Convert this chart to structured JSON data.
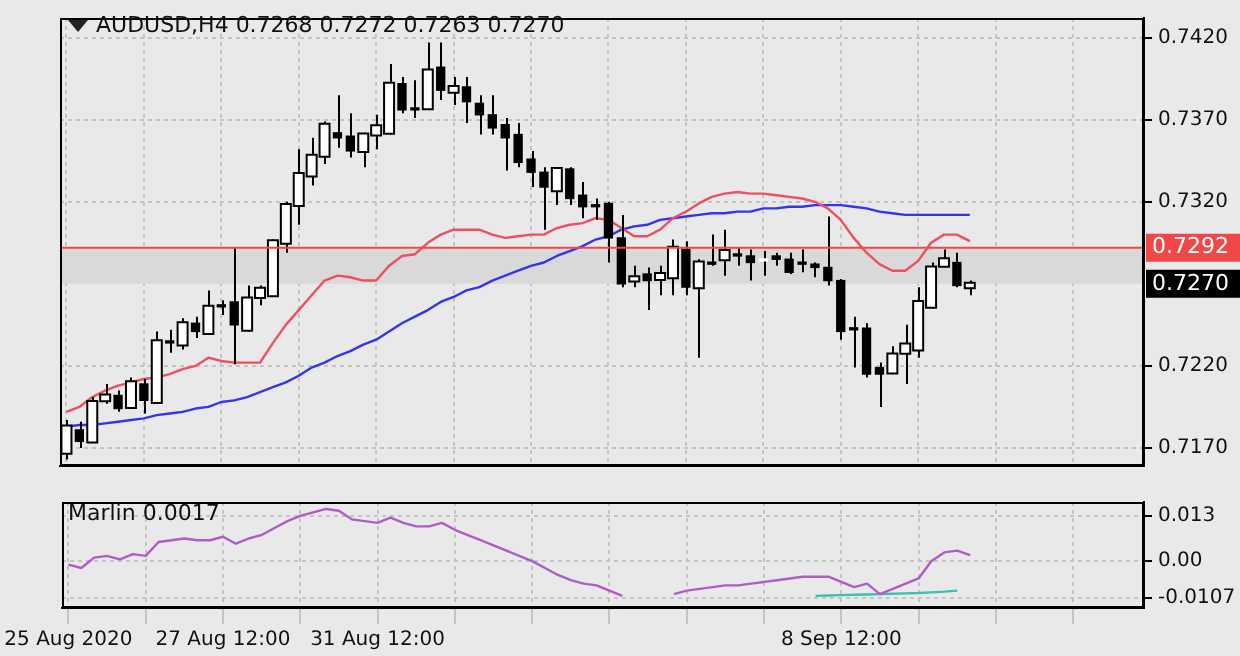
{
  "chart_data": [
    {
      "type": "candlestick",
      "title": "AUDUSD,H4  0.7268 0.7272 0.7263 0.7270",
      "categories": [
        null,
        null,
        null,
        null,
        null,
        null,
        null,
        null,
        null,
        null,
        null,
        null,
        null,
        null,
        null,
        null,
        null,
        null,
        null,
        null,
        null,
        null,
        null,
        null,
        null,
        null,
        null,
        null,
        null,
        null,
        null,
        null,
        null,
        null,
        null,
        null,
        null,
        null,
        null,
        null,
        null,
        null,
        null,
        null,
        null,
        null,
        null,
        null,
        null,
        null,
        null,
        null,
        null,
        null,
        null,
        null,
        null,
        null,
        null,
        null,
        null,
        null,
        null,
        null,
        null,
        null,
        null,
        null,
        null,
        null,
        null,
        null,
        null,
        null,
        null,
        null,
        null,
        null,
        null,
        null,
        null,
        null,
        null,
        null
      ],
      "ohlc": [
        [
          0.7167,
          0.7187,
          0.7163,
          0.7183
        ],
        [
          0.7181,
          0.7186,
          0.717,
          0.7174
        ],
        [
          0.7174,
          0.7201,
          0.7173,
          0.7198
        ],
        [
          0.7199,
          0.7209,
          0.7197,
          0.7202
        ],
        [
          0.7202,
          0.7205,
          0.7192,
          0.7194
        ],
        [
          0.7195,
          0.7213,
          0.7194,
          0.721
        ],
        [
          0.7209,
          0.7212,
          0.7191,
          0.7199
        ],
        [
          0.7198,
          0.7241,
          0.7197,
          0.7235
        ],
        [
          0.7235,
          0.7242,
          0.7228,
          0.7234
        ],
        [
          0.7233,
          0.7249,
          0.723,
          0.7246
        ],
        [
          0.7246,
          0.725,
          0.7237,
          0.7241
        ],
        [
          0.724,
          0.7266,
          0.7239,
          0.7256
        ],
        [
          0.7257,
          0.726,
          0.7251,
          0.7256
        ],
        [
          0.7259,
          0.7292,
          0.7221,
          0.7245
        ],
        [
          0.7242,
          0.7269,
          0.7241,
          0.7261
        ],
        [
          0.7262,
          0.7269,
          0.7257,
          0.7267
        ],
        [
          0.7263,
          0.7297,
          0.7262,
          0.7296
        ],
        [
          0.7295,
          0.732,
          0.7289,
          0.7318
        ],
        [
          0.7318,
          0.7352,
          0.7306,
          0.7337
        ],
        [
          0.7336,
          0.7359,
          0.733,
          0.7348
        ],
        [
          0.7348,
          0.7369,
          0.7343,
          0.7367
        ],
        [
          0.7362,
          0.7385,
          0.7353,
          0.7359
        ],
        [
          0.736,
          0.7374,
          0.7347,
          0.7351
        ],
        [
          0.7351,
          0.7362,
          0.7341,
          0.7361
        ],
        [
          0.7361,
          0.7373,
          0.7352,
          0.7366
        ],
        [
          0.7362,
          0.7404,
          0.7361,
          0.7392
        ],
        [
          0.7392,
          0.7396,
          0.7374,
          0.7376
        ],
        [
          0.7377,
          0.7394,
          0.7371,
          0.7376
        ],
        [
          0.7377,
          0.7417,
          0.7376,
          0.74
        ],
        [
          0.7402,
          0.7417,
          0.7382,
          0.7388
        ],
        [
          0.7387,
          0.7396,
          0.7379,
          0.739
        ],
        [
          0.739,
          0.7396,
          0.7368,
          0.7381
        ],
        [
          0.738,
          0.7385,
          0.7361,
          0.7373
        ],
        [
          0.7373,
          0.7385,
          0.7361,
          0.7365
        ],
        [
          0.7367,
          0.7371,
          0.7339,
          0.7359
        ],
        [
          0.7361,
          0.7368,
          0.7341,
          0.7344
        ],
        [
          0.7346,
          0.7351,
          0.7329,
          0.7338
        ],
        [
          0.7338,
          0.7341,
          0.7303,
          0.7329
        ],
        [
          0.7327,
          0.7341,
          0.7318,
          0.734
        ],
        [
          0.734,
          0.7341,
          0.7318,
          0.7322
        ],
        [
          0.7324,
          0.7332,
          0.731,
          0.7317
        ],
        [
          0.7318,
          0.7322,
          0.7309,
          0.7317
        ],
        [
          0.7319,
          0.732,
          0.7283,
          0.7298
        ],
        [
          0.7298,
          0.7312,
          0.7268,
          0.727
        ],
        [
          0.7272,
          0.7281,
          0.7268,
          0.7274
        ],
        [
          0.7276,
          0.728,
          0.7254,
          0.7272
        ],
        [
          0.7273,
          0.7281,
          0.7263,
          0.7276
        ],
        [
          0.7274,
          0.7297,
          0.7263,
          0.7292
        ],
        [
          0.7291,
          0.7296,
          0.7263,
          0.7268
        ],
        [
          0.7268,
          0.7285,
          0.7225,
          0.7283
        ],
        [
          0.7283,
          0.73,
          0.7281,
          0.7282
        ],
        [
          0.7285,
          0.7303,
          0.7275,
          0.729
        ],
        [
          0.7288,
          0.7292,
          0.7281,
          0.7287
        ],
        [
          0.7287,
          0.7291,
          0.7272,
          0.7283
        ],
        [
          0.7284,
          0.729,
          0.7275,
          0.7284
        ],
        [
          0.7287,
          0.7289,
          0.7281,
          0.7285
        ],
        [
          0.7285,
          0.7289,
          0.7276,
          0.7277
        ],
        [
          0.7283,
          0.7291,
          0.7277,
          0.7282
        ],
        [
          0.7282,
          0.7283,
          0.7274,
          0.728
        ],
        [
          0.728,
          0.7311,
          0.7269,
          0.7272
        ],
        [
          0.7272,
          0.7273,
          0.7236,
          0.7241
        ],
        [
          0.7243,
          0.725,
          0.7219,
          0.7242
        ],
        [
          0.7243,
          0.7246,
          0.7213,
          0.7215
        ],
        [
          0.7219,
          0.7222,
          0.7195,
          0.7215
        ],
        [
          0.7216,
          0.7232,
          0.7215,
          0.7227
        ],
        [
          0.7228,
          0.7245,
          0.7209,
          0.7233
        ],
        [
          0.723,
          0.7268,
          0.7225,
          0.7259
        ],
        [
          0.7256,
          0.7283,
          0.7255,
          0.728
        ],
        [
          0.7281,
          0.7291,
          0.728,
          0.7285
        ],
        [
          0.7283,
          0.7289,
          0.7268,
          0.7269
        ],
        [
          0.7268,
          0.7272,
          0.7263,
          0.727
        ],
        null,
        null,
        null,
        null,
        null,
        null,
        null,
        null,
        null,
        null,
        null,
        null,
        null
      ],
      "series": [
        {
          "type": "line",
          "color": "#ee4f60",
          "values": [
            0.7192,
            0.7195,
            0.7201,
            0.7205,
            0.7208,
            0.721,
            0.7212,
            0.7213,
            0.7215,
            0.7218,
            0.722,
            0.7225,
            0.7223,
            0.7222,
            0.7222,
            0.7222,
            0.7234,
            0.7245,
            0.7254,
            0.7263,
            0.7272,
            0.7275,
            0.7274,
            0.7272,
            0.7272,
            0.7281,
            0.7287,
            0.7288,
            0.7295,
            0.73,
            0.7303,
            0.7303,
            0.7303,
            0.73,
            0.7298,
            0.7299,
            0.73,
            0.73,
            0.7304,
            0.7306,
            0.7307,
            0.731,
            0.7309,
            0.7304,
            0.7299,
            0.7299,
            0.7303,
            0.731,
            0.7314,
            0.7319,
            0.7323,
            0.7325,
            0.7326,
            0.7325,
            0.7325,
            0.7324,
            0.7323,
            0.7322,
            0.732,
            0.7316,
            0.7309,
            0.7298,
            0.7289,
            0.7282,
            0.7278,
            0.7278,
            0.7284,
            0.7295,
            0.73,
            0.73,
            0.7296,
            null,
            null,
            null,
            null,
            null,
            null,
            null,
            null,
            null,
            null,
            null,
            null,
            null
          ]
        },
        {
          "type": "line",
          "color": "#3434f0",
          "values": [
            0.7183,
            0.7184,
            0.7184,
            0.7185,
            0.7186,
            0.7187,
            0.7188,
            0.719,
            0.7191,
            0.7192,
            0.7194,
            0.7195,
            0.7198,
            0.7199,
            0.7201,
            0.7204,
            0.7207,
            0.721,
            0.7214,
            0.7219,
            0.7222,
            0.7226,
            0.7229,
            0.7233,
            0.7236,
            0.7241,
            0.7246,
            0.725,
            0.7254,
            0.7259,
            0.7262,
            0.7266,
            0.7268,
            0.7272,
            0.7275,
            0.7278,
            0.7281,
            0.7283,
            0.7287,
            0.729,
            0.7293,
            0.7297,
            0.7299,
            0.7303,
            0.7305,
            0.7306,
            0.7309,
            0.731,
            0.7311,
            0.7312,
            0.7313,
            0.7313,
            0.7314,
            0.7314,
            0.7316,
            0.7316,
            0.7317,
            0.7317,
            0.7318,
            0.7318,
            0.7318,
            0.7317,
            0.7316,
            0.7314,
            0.7313,
            0.7312,
            0.7312,
            0.7312,
            0.7312,
            0.7312,
            0.7312,
            null,
            null,
            null,
            null,
            null,
            null,
            null,
            null,
            null,
            null,
            null,
            null,
            null
          ]
        }
      ],
      "ylim": [
        0.7159,
        0.7432
      ],
      "yticks": [
        {
          "value": 0.742,
          "label": "0.7420"
        },
        {
          "value": 0.737,
          "label": "0.7370"
        },
        {
          "value": 0.732,
          "label": "0.7320"
        },
        {
          "value": 0.722,
          "label": "0.7220"
        },
        {
          "value": 0.717,
          "label": "0.7170"
        }
      ],
      "ref_lines": [
        {
          "axis": "y",
          "value": 0.7292,
          "label": "0.7292",
          "color": "#f04848"
        }
      ],
      "bands": [
        {
          "axis": "y",
          "from": 0.727,
          "to": 0.7292,
          "color": "#d9d9d9"
        }
      ],
      "annotations": [
        "0.7270"
      ],
      "grid": true,
      "tick_labels": "y"
    },
    {
      "type": "line",
      "title": "Marlin 0.0017",
      "categories": [
        "25 Aug 2020",
        null,
        null,
        null,
        null,
        null,
        null,
        null,
        null,
        null,
        null,
        null,
        "27 Aug 12:00",
        null,
        null,
        null,
        null,
        null,
        null,
        null,
        null,
        null,
        null,
        null,
        "31 Aug 12:00",
        null,
        null,
        null,
        null,
        null,
        null,
        null,
        null,
        null,
        null,
        null,
        null,
        null,
        null,
        null,
        null,
        null,
        null,
        null,
        null,
        null,
        null,
        null,
        null,
        null,
        null,
        null,
        null,
        null,
        null,
        null,
        null,
        null,
        null,
        null,
        "8 Sep 12:00",
        null,
        null,
        null,
        null,
        null,
        null,
        null,
        null,
        null,
        null,
        null,
        null,
        null,
        null,
        null,
        null,
        null,
        null,
        null,
        null,
        null,
        null,
        null
      ],
      "series": [
        {
          "color": "#b05cc8",
          "values": [
            -0.001,
            -0.002,
            0.001,
            0.0015,
            0.0005,
            0.002,
            0.0015,
            0.0055,
            0.006,
            0.0065,
            0.006,
            0.006,
            0.007,
            0.005,
            0.0065,
            0.0075,
            0.0095,
            0.0115,
            0.013,
            0.014,
            0.015,
            0.0145,
            0.012,
            0.0115,
            0.011,
            0.0125,
            0.011,
            0.01,
            0.01,
            0.011,
            0.009,
            0.0075,
            0.006,
            0.0045,
            0.003,
            0.0015,
            0,
            -0.002,
            -0.004,
            -0.0055,
            -0.0065,
            -0.007,
            -0.0085,
            -0.01,
            null,
            null,
            null,
            -0.0095,
            -0.0085,
            -0.008,
            -0.0075,
            -0.007,
            -0.007,
            -0.0065,
            -0.006,
            -0.0055,
            -0.005,
            -0.0045,
            -0.0045,
            -0.0045,
            -0.006,
            -0.0075,
            -0.0065,
            -0.0095,
            -0.008,
            -0.0065,
            -0.005,
            0,
            0.0025,
            0.003,
            0.0017,
            null,
            null,
            null,
            null,
            null,
            null,
            null,
            null,
            null,
            null,
            null,
            null,
            null
          ]
        },
        {
          "color": "#3cc0b0",
          "values": [
            null,
            null,
            null,
            null,
            null,
            null,
            null,
            null,
            null,
            null,
            null,
            null,
            null,
            null,
            null,
            null,
            null,
            null,
            null,
            null,
            null,
            null,
            null,
            null,
            null,
            null,
            null,
            null,
            null,
            null,
            null,
            null,
            null,
            null,
            null,
            null,
            null,
            null,
            null,
            null,
            null,
            null,
            null,
            null,
            null,
            null,
            null,
            null,
            null,
            null,
            null,
            null,
            null,
            null,
            null,
            null,
            null,
            null,
            -0.01,
            -0.0099,
            -0.0098,
            -0.0097,
            -0.0096,
            -0.0095,
            -0.0094,
            -0.0093,
            -0.0092,
            -0.009,
            -0.0088,
            -0.0085,
            null,
            null,
            null,
            null,
            null,
            null,
            null,
            null,
            null,
            null,
            null,
            null,
            null,
            null
          ]
        }
      ],
      "ylim": [
        -0.0135,
        0.017
      ],
      "yticks": [
        0.013,
        {
          "value": 0,
          "label": "0.00"
        },
        -0.0107
      ],
      "grid": true
    }
  ]
}
